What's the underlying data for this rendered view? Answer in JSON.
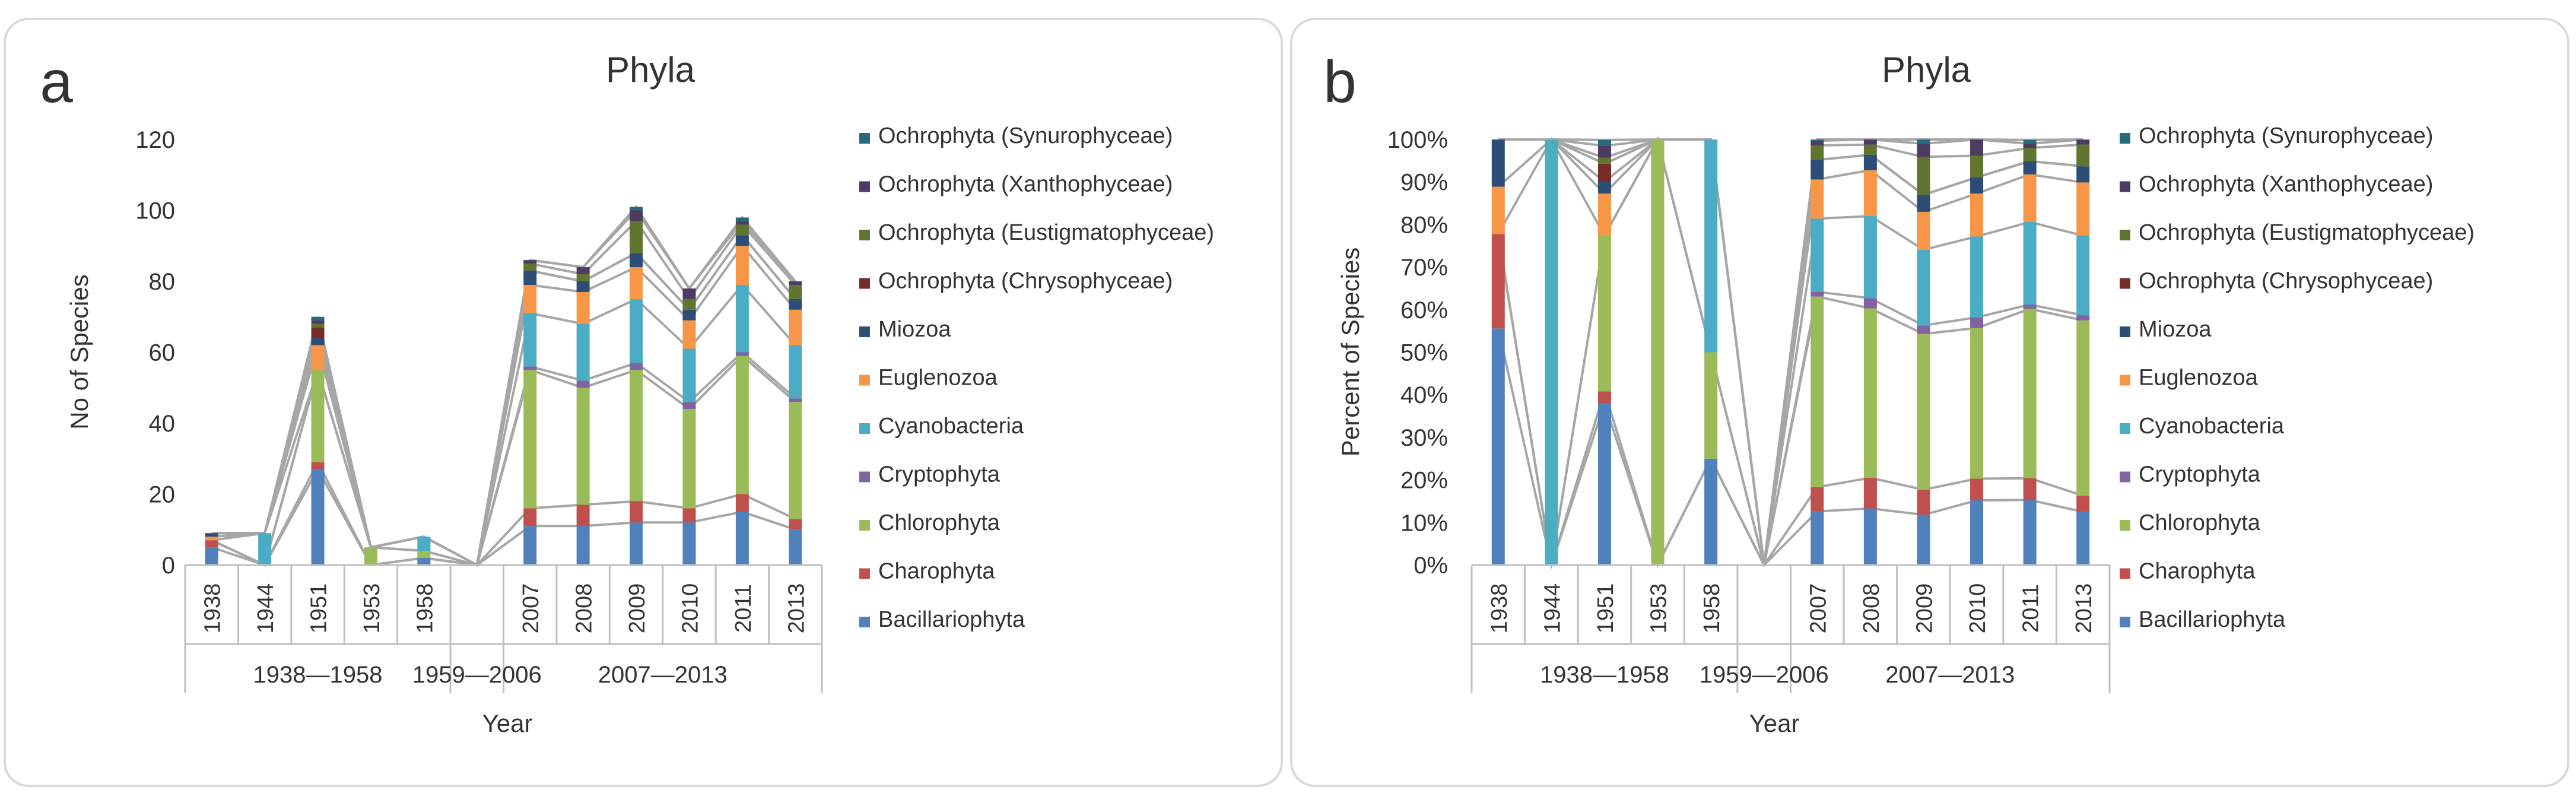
{
  "chart_data": [
    {
      "panel_letter": "a",
      "type": "bar",
      "stacked": true,
      "title": "Phyla",
      "xlabel": "Year",
      "ylabel": "No of Species",
      "ylim": [
        0,
        120
      ],
      "yticks": [
        "0",
        "20",
        "40",
        "60",
        "80",
        "100",
        "120"
      ],
      "categories": [
        "1938",
        "1944",
        "1951",
        "1953",
        "1958",
        "",
        "2007",
        "2008",
        "2009",
        "2010",
        "2011",
        "2013"
      ],
      "groups": [
        {
          "label": "1938—1958",
          "start": 0,
          "end": 4
        },
        {
          "label": "1959—2006",
          "start": 5,
          "end": 5
        },
        {
          "label": "2007—2013",
          "start": 6,
          "end": 11
        }
      ],
      "series": [
        {
          "name": "Bacillariophyta",
          "values": [
            5,
            0,
            27,
            0,
            2,
            0,
            11,
            11,
            12,
            12,
            15,
            10
          ]
        },
        {
          "name": "Charophyta",
          "values": [
            2,
            0,
            2,
            0,
            0,
            0,
            5,
            6,
            6,
            4,
            5,
            3
          ]
        },
        {
          "name": "Chlorophyta",
          "values": [
            0,
            0,
            26,
            5,
            2,
            0,
            39,
            33,
            37,
            28,
            39,
            33
          ]
        },
        {
          "name": "Cryptophyta",
          "values": [
            0,
            0,
            0,
            0,
            0,
            0,
            1,
            2,
            2,
            2,
            1,
            1
          ]
        },
        {
          "name": "Cyanobacteria",
          "values": [
            0,
            9,
            0,
            0,
            4,
            0,
            15,
            16,
            18,
            15,
            19,
            15
          ]
        },
        {
          "name": "Euglenozoa",
          "values": [
            1,
            0,
            7,
            0,
            0,
            0,
            8,
            9,
            9,
            8,
            11,
            10
          ]
        },
        {
          "name": "Miozoa",
          "values": [
            1,
            0,
            2,
            0,
            0,
            0,
            4,
            3,
            4,
            3,
            3,
            3
          ]
        },
        {
          "name": "Ochrophyta (Chrysophyceae)",
          "values": [
            0,
            0,
            3,
            0,
            0,
            0,
            0,
            0,
            0,
            0,
            0,
            0
          ]
        },
        {
          "name": "Ochrophyta (Eustigmatophyceae)",
          "values": [
            0,
            0,
            1,
            0,
            0,
            0,
            2,
            2,
            9,
            3,
            3,
            4
          ]
        },
        {
          "name": "Ochrophyta (Xanthophyceae)",
          "values": [
            0,
            0,
            1,
            0,
            0,
            0,
            1,
            2,
            3,
            3,
            1,
            1
          ]
        },
        {
          "name": "Ochrophyta (Synurophyceae)",
          "values": [
            0,
            0,
            1,
            0,
            0,
            0,
            0,
            0,
            1,
            0,
            1,
            0
          ]
        }
      ]
    },
    {
      "panel_letter": "b",
      "type": "bar",
      "stacked": true,
      "percent": true,
      "title": "Phyla",
      "xlabel": "Year",
      "ylabel": "Percent of Species",
      "ylim": [
        0,
        100
      ],
      "yticks": [
        "0%",
        "10%",
        "20%",
        "30%",
        "40%",
        "50%",
        "60%",
        "70%",
        "80%",
        "90%",
        "100%"
      ],
      "categories": [
        "1938",
        "1944",
        "1951",
        "1953",
        "1958",
        "",
        "2007",
        "2008",
        "2009",
        "2010",
        "2011",
        "2013"
      ],
      "groups": [
        {
          "label": "1938—1958",
          "start": 0,
          "end": 4
        },
        {
          "label": "1959—2006",
          "start": 5,
          "end": 5
        },
        {
          "label": "2007—2013",
          "start": 6,
          "end": 11
        }
      ],
      "series": [
        {
          "name": "Bacillariophyta",
          "values": [
            55.6,
            0,
            38,
            0,
            25,
            0,
            12.6,
            13.3,
            11.8,
            15.2,
            15.3,
            12.5
          ]
        },
        {
          "name": "Charophyta",
          "values": [
            22.2,
            0,
            2.8,
            0,
            0,
            0,
            5.7,
            7.2,
            5.9,
            5.1,
            5.1,
            3.8
          ]
        },
        {
          "name": "Chlorophyta",
          "values": [
            0,
            0,
            36.6,
            100,
            25,
            0,
            44.8,
            39.8,
            36.6,
            35.4,
            39.8,
            41.2
          ]
        },
        {
          "name": "Cryptophyta",
          "values": [
            0,
            0,
            0,
            0,
            0,
            0,
            1.1,
            2.4,
            2,
            2.5,
            1,
            1.2
          ]
        },
        {
          "name": "Cyanobacteria",
          "values": [
            0,
            100,
            0,
            0,
            50,
            0,
            17.2,
            19.3,
            17.8,
            19,
            19.4,
            18.7
          ]
        },
        {
          "name": "Euglenozoa",
          "values": [
            11.1,
            0,
            9.9,
            0,
            0,
            0,
            9.2,
            10.8,
            8.9,
            10.1,
            11.2,
            12.5
          ]
        },
        {
          "name": "Miozoa",
          "values": [
            11.1,
            0,
            2.8,
            0,
            0,
            0,
            4.6,
            3.6,
            4,
            3.8,
            3.1,
            3.8
          ]
        },
        {
          "name": "Ochrophyta (Chrysophyceae)",
          "values": [
            0,
            0,
            4.2,
            0,
            0,
            0,
            0,
            0,
            0,
            0,
            0,
            0
          ]
        },
        {
          "name": "Ochrophyta (Eustigmatophyceae)",
          "values": [
            0,
            0,
            1.4,
            0,
            0,
            0,
            3.4,
            2.4,
            8.9,
            5.1,
            3.1,
            5.1
          ]
        },
        {
          "name": "Ochrophyta (Xanthophyceae)",
          "values": [
            0,
            0,
            2.8,
            0,
            0,
            0,
            1.1,
            1.2,
            3.1,
            3.8,
            1,
            1.2
          ]
        },
        {
          "name": "Ochrophyta (Synurophyceae)",
          "values": [
            0,
            0,
            1.4,
            0,
            0,
            0,
            0.3,
            0,
            1,
            0,
            0.9,
            0
          ]
        }
      ]
    }
  ],
  "colors": {
    "Bacillariophyta": "#4f81bd",
    "Charophyta": "#c0504d",
    "Chlorophyta": "#9bbb59",
    "Cryptophyta": "#8064a2",
    "Cyanobacteria": "#4bacc6",
    "Euglenozoa": "#f79646",
    "Miozoa": "#2c4d75",
    "Ochrophyta (Chrysophyceae)": "#772c2a",
    "Ochrophyta (Eustigmatophyceae)": "#5f7530",
    "Ochrophyta (Xanthophyceae)": "#4d3b62",
    "Ochrophyta (Synurophyceae)": "#276a7c",
    "series_line": "#a6a6a6",
    "axis": "#bfbfbf",
    "panel_border": "#d9d9d9",
    "text": "#333333"
  }
}
